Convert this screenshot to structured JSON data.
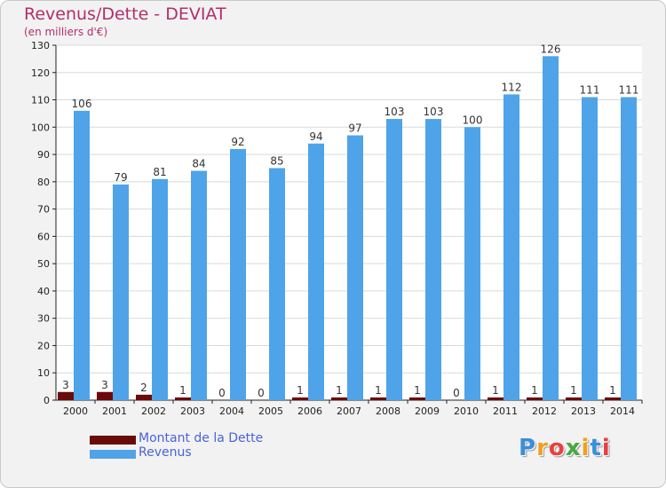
{
  "header": {
    "title": "Revenus/Dette - DEVIAT",
    "subtitle": "(en milliers d'€)"
  },
  "legend": {
    "items": [
      {
        "label": "Montant de la Dette",
        "color": "#6b0a0a"
      },
      {
        "label": "Revenus",
        "color": "#4fa3e8"
      }
    ]
  },
  "logo": {
    "text": "Proxiti"
  },
  "colors": {
    "debt": "#6b0a0a",
    "revenue": "#4fa3e8",
    "grid": "#d9d9d9",
    "axis": "#222222",
    "title": "#b0306a"
  },
  "chart_data": {
    "type": "bar",
    "title": "Revenus/Dette - DEVIAT",
    "ylabel": "(en milliers d'€)",
    "xlabel": "",
    "ylim": [
      0,
      130
    ],
    "yticks": [
      0,
      10,
      20,
      30,
      40,
      50,
      60,
      70,
      80,
      90,
      100,
      110,
      120,
      130
    ],
    "grid": true,
    "legend_position": "bottom-left",
    "categories": [
      "2000",
      "2001",
      "2002",
      "2003",
      "2004",
      "2005",
      "2006",
      "2007",
      "2008",
      "2009",
      "2010",
      "2011",
      "2012",
      "2013",
      "2014"
    ],
    "series": [
      {
        "name": "Montant de la Dette",
        "values": [
          3,
          3,
          2,
          1,
          0,
          0,
          1,
          1,
          1,
          1,
          0,
          1,
          1,
          1,
          1
        ]
      },
      {
        "name": "Revenus",
        "values": [
          106,
          79,
          81,
          84,
          92,
          85,
          94,
          97,
          103,
          103,
          100,
          112,
          126,
          111,
          111
        ]
      }
    ]
  }
}
